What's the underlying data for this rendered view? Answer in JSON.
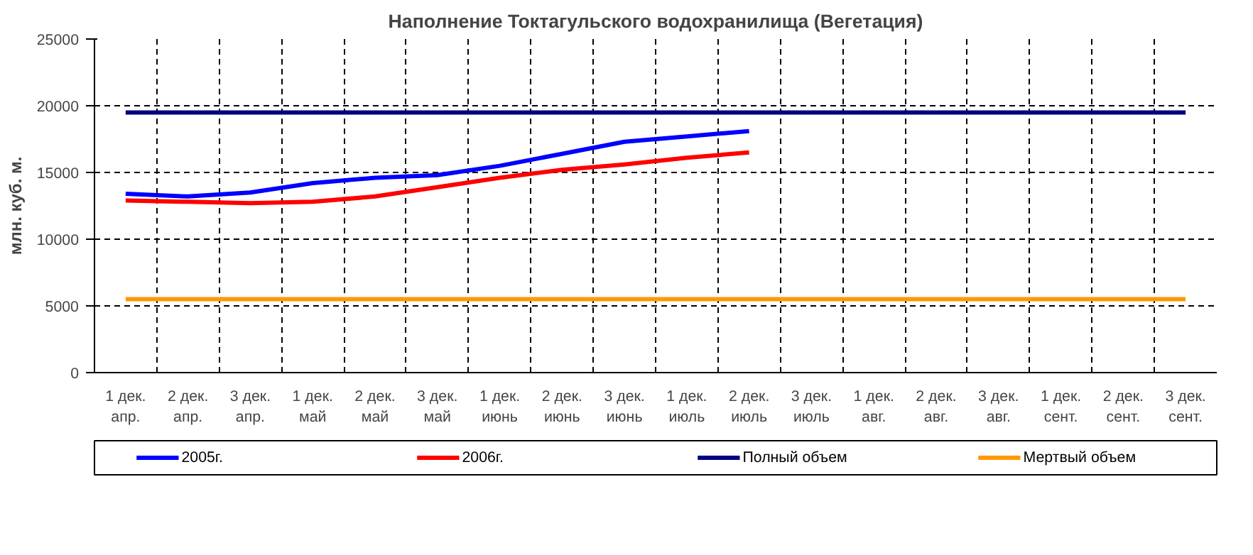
{
  "chart_data": {
    "type": "line",
    "title": "Наполнение Токтагульского водохранилища (Вегетация)",
    "ylabel": "млн. куб. м.",
    "categories": [
      "1 дек.\nапр.",
      "2 дек.\nапр.",
      "3 дек.\nапр.",
      "1 дек.\nмай",
      "2 дек.\nмай",
      "3 дек.\nмай",
      "1 дек.\nиюнь",
      "2 дек.\nиюнь",
      "3 дек.\nиюнь",
      "1 дек.\nиюль",
      "2 дек.\nиюль",
      "3 дек.\nиюль",
      "1 дек.\nавг.",
      "2 дек.\nавг.",
      "3 дек.\nавг.",
      "1 дек.\nсент.",
      "2 дек.\nсент.",
      "3 дек.\nсент."
    ],
    "series": [
      {
        "name": "2005г.",
        "color": "#0000ff",
        "values": [
          13400,
          13200,
          13500,
          14200,
          14600,
          14800,
          15500,
          16400,
          17300,
          17700,
          18100,
          null,
          null,
          null,
          null,
          null,
          null,
          null
        ]
      },
      {
        "name": "2006г.",
        "color": "#ff0000",
        "values": [
          12900,
          12800,
          12700,
          12800,
          13200,
          13900,
          14600,
          15200,
          15600,
          16100,
          16500,
          null,
          null,
          null,
          null,
          null,
          null,
          null
        ]
      },
      {
        "name": "Полный объем",
        "color": "#000080",
        "values": [
          19500,
          19500,
          19500,
          19500,
          19500,
          19500,
          19500,
          19500,
          19500,
          19500,
          19500,
          19500,
          19500,
          19500,
          19500,
          19500,
          19500,
          19500
        ]
      },
      {
        "name": "Мертвый объем",
        "color": "#ff9900",
        "values": [
          5500,
          5500,
          5500,
          5500,
          5500,
          5500,
          5500,
          5500,
          5500,
          5500,
          5500,
          5500,
          5500,
          5500,
          5500,
          5500,
          5500,
          5500
        ]
      }
    ],
    "ylim": [
      0,
      25000
    ],
    "yticks": [
      0,
      5000,
      10000,
      15000,
      20000,
      25000
    ],
    "grid": true,
    "legend": "bottom",
    "marker": "none",
    "line_style": "solid"
  }
}
